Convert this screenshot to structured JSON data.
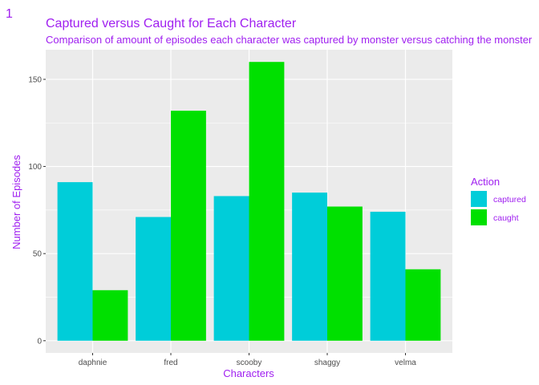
{
  "corner_label": "1",
  "colors": {
    "text": "#a020f0",
    "panel": "#ebebeb",
    "grid": "#ffffff",
    "captured": "#00cdd9",
    "caught": "#00e000"
  },
  "chart_data": {
    "type": "bar",
    "title": "Captured versus Caught for Each Character",
    "subtitle": "Comparison of amount of episodes each character was captured by monster versus catching the monster",
    "xlabel": "Characters",
    "ylabel": "Number of Episodes",
    "categories": [
      "daphnie",
      "fred",
      "scooby",
      "shaggy",
      "velma"
    ],
    "series": [
      {
        "name": "captured",
        "values": [
          91,
          71,
          83,
          85,
          74
        ]
      },
      {
        "name": "caught",
        "values": [
          29,
          132,
          160,
          77,
          41
        ]
      }
    ],
    "ylim": [
      -7,
      167
    ],
    "yticks": [
      0,
      50,
      100,
      150
    ],
    "grid": true,
    "legend_title": "Action",
    "legend_position": "right"
  }
}
